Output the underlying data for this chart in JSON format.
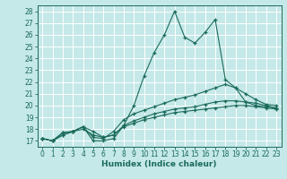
{
  "title": "",
  "xlabel": "Humidex (Indice chaleur)",
  "ylabel": "",
  "bg_color": "#c5e8e8",
  "grid_color": "#ffffff",
  "line_color": "#1a6b5a",
  "xlim": [
    -0.5,
    23.5
  ],
  "ylim": [
    16.5,
    28.5
  ],
  "yticks": [
    17,
    18,
    19,
    20,
    21,
    22,
    23,
    24,
    25,
    26,
    27,
    28
  ],
  "xticks": [
    0,
    1,
    2,
    3,
    4,
    5,
    6,
    7,
    8,
    9,
    10,
    11,
    12,
    13,
    14,
    15,
    16,
    17,
    18,
    19,
    20,
    21,
    22,
    23
  ],
  "series": [
    [
      17.2,
      17.0,
      17.7,
      17.8,
      18.2,
      17.0,
      17.0,
      17.2,
      18.3,
      20.0,
      22.5,
      24.5,
      26.0,
      28.0,
      25.8,
      25.3,
      26.2,
      27.3,
      22.2,
      21.5,
      20.3,
      20.0,
      19.9,
      19.8
    ],
    [
      17.2,
      17.0,
      17.7,
      17.8,
      18.2,
      17.3,
      17.2,
      17.8,
      18.8,
      19.3,
      19.6,
      19.9,
      20.2,
      20.5,
      20.7,
      20.9,
      21.2,
      21.5,
      21.8,
      21.5,
      21.0,
      20.5,
      20.1,
      20.0
    ],
    [
      17.2,
      17.0,
      17.5,
      17.8,
      18.0,
      17.5,
      17.3,
      17.5,
      18.3,
      18.7,
      19.0,
      19.3,
      19.5,
      19.7,
      19.8,
      19.9,
      20.1,
      20.3,
      20.4,
      20.4,
      20.3,
      20.2,
      20.0,
      19.8
    ],
    [
      17.2,
      17.0,
      17.5,
      17.8,
      18.2,
      17.8,
      17.3,
      17.5,
      18.2,
      18.5,
      18.8,
      19.0,
      19.2,
      19.4,
      19.5,
      19.6,
      19.7,
      19.8,
      19.9,
      20.0,
      20.0,
      19.9,
      19.8,
      19.7
    ]
  ]
}
